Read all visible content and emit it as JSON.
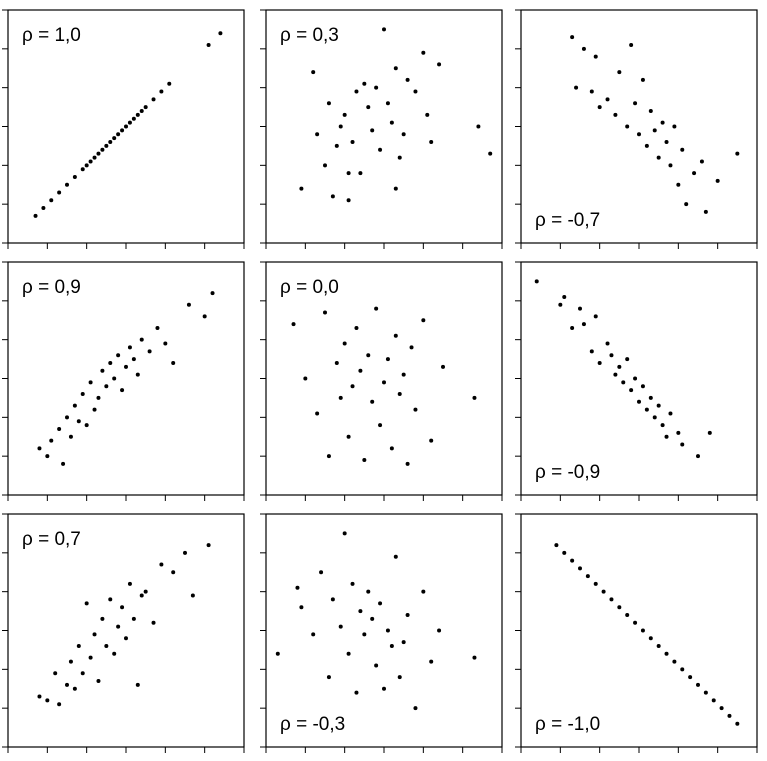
{
  "chart_data": [
    {
      "type": "scatter",
      "annotation": "ρ = 1,0",
      "annotation_corner": "upper left",
      "color": "#000000",
      "x": [
        0.7,
        0.9,
        1.1,
        1.3,
        1.5,
        1.7,
        1.9,
        2.0,
        2.1,
        2.2,
        2.3,
        2.4,
        2.5,
        2.6,
        2.7,
        2.8,
        2.9,
        3.0,
        3.1,
        3.2,
        3.3,
        3.4,
        3.5,
        3.7,
        3.9,
        4.1,
        5.1,
        5.4
      ],
      "y": [
        0.7,
        0.9,
        1.1,
        1.3,
        1.5,
        1.7,
        1.9,
        2.0,
        2.1,
        2.2,
        2.3,
        2.4,
        2.5,
        2.6,
        2.7,
        2.8,
        2.9,
        3.0,
        3.1,
        3.2,
        3.3,
        3.4,
        3.5,
        3.7,
        3.9,
        4.1,
        5.1,
        5.4
      ],
      "xlim": [
        0,
        6
      ],
      "ylim": [
        0,
        6
      ],
      "xticks": [
        0,
        1,
        2,
        3,
        4,
        5,
        6
      ],
      "yticks": [
        0,
        1,
        2,
        3,
        4,
        5,
        6
      ]
    },
    {
      "type": "scatter",
      "annotation": "ρ = 0,3",
      "annotation_corner": "upper left",
      "color": "#000000",
      "x": [
        0.9,
        1.2,
        1.3,
        1.5,
        1.6,
        1.7,
        1.8,
        1.9,
        2.0,
        2.1,
        2.2,
        2.3,
        2.4,
        2.5,
        2.6,
        2.7,
        2.8,
        2.9,
        3.0,
        3.1,
        3.2,
        3.3,
        3.4,
        3.5,
        3.6,
        3.8,
        4.0,
        4.2,
        4.4,
        5.4,
        5.7,
        3.3,
        2.1,
        4.1
      ],
      "y": [
        1.4,
        4.4,
        2.8,
        2.0,
        3.6,
        1.2,
        2.5,
        3.0,
        3.3,
        1.1,
        2.6,
        3.9,
        1.8,
        4.1,
        3.5,
        2.9,
        4.0,
        2.4,
        5.5,
        3.6,
        3.1,
        4.5,
        2.2,
        2.8,
        4.2,
        3.9,
        4.9,
        2.6,
        4.6,
        3.0,
        2.3,
        1.4,
        1.8,
        3.3
      ],
      "xlim": [
        0,
        6
      ],
      "ylim": [
        0,
        6
      ],
      "xticks": [
        0,
        1,
        2,
        3,
        4,
        5,
        6
      ],
      "yticks": [
        0,
        1,
        2,
        3,
        4,
        5,
        6
      ]
    },
    {
      "type": "scatter",
      "annotation": "ρ = -0,7",
      "annotation_corner": "lower left",
      "color": "#000000",
      "x": [
        1.3,
        1.4,
        1.6,
        1.8,
        1.9,
        2.0,
        2.2,
        2.4,
        2.5,
        2.7,
        2.8,
        2.9,
        3.0,
        3.1,
        3.2,
        3.3,
        3.4,
        3.5,
        3.6,
        3.7,
        3.8,
        3.9,
        4.0,
        4.1,
        4.2,
        4.4,
        4.6,
        4.7,
        5.0,
        5.5
      ],
      "y": [
        5.3,
        4.0,
        5.0,
        3.9,
        4.8,
        3.5,
        3.7,
        3.3,
        4.4,
        3.0,
        5.1,
        3.6,
        2.8,
        4.2,
        2.5,
        3.4,
        2.9,
        2.2,
        3.1,
        2.6,
        2.0,
        3.0,
        1.5,
        2.4,
        1.0,
        1.8,
        2.1,
        0.8,
        1.6,
        2.3
      ],
      "xlim": [
        0,
        6
      ],
      "ylim": [
        0,
        6
      ],
      "xticks": [
        0,
        1,
        2,
        3,
        4,
        5,
        6
      ],
      "yticks": [
        0,
        1,
        2,
        3,
        4,
        5,
        6
      ]
    },
    {
      "type": "scatter",
      "annotation": "ρ = 0,9",
      "annotation_corner": "upper left",
      "color": "#000000",
      "x": [
        0.8,
        1.0,
        1.1,
        1.3,
        1.4,
        1.5,
        1.6,
        1.7,
        1.8,
        1.9,
        2.0,
        2.1,
        2.2,
        2.3,
        2.4,
        2.5,
        2.6,
        2.7,
        2.8,
        2.9,
        3.0,
        3.1,
        3.2,
        3.3,
        3.4,
        3.6,
        3.8,
        4.0,
        4.2,
        4.6,
        5.0,
        5.2
      ],
      "y": [
        1.2,
        1.0,
        1.4,
        1.7,
        0.8,
        2.0,
        1.5,
        2.3,
        1.9,
        2.6,
        1.8,
        2.9,
        2.2,
        2.5,
        3.2,
        2.8,
        3.4,
        3.0,
        3.6,
        2.7,
        3.3,
        3.8,
        3.5,
        3.1,
        4.0,
        3.7,
        4.3,
        3.9,
        3.4,
        4.9,
        4.6,
        5.2
      ],
      "xlim": [
        0,
        6
      ],
      "ylim": [
        0,
        6
      ],
      "xticks": [
        0,
        1,
        2,
        3,
        4,
        5,
        6
      ],
      "yticks": [
        0,
        1,
        2,
        3,
        4,
        5,
        6
      ]
    },
    {
      "type": "scatter",
      "annotation": "ρ = 0,0",
      "annotation_corner": "upper left",
      "color": "#000000",
      "x": [
        0.7,
        1.0,
        1.3,
        1.5,
        1.6,
        1.8,
        1.9,
        2.0,
        2.1,
        2.2,
        2.3,
        2.4,
        2.5,
        2.6,
        2.7,
        2.8,
        2.9,
        3.0,
        3.1,
        3.2,
        3.3,
        3.4,
        3.5,
        3.6,
        3.7,
        3.8,
        4.0,
        4.2,
        4.5,
        5.3
      ],
      "y": [
        4.4,
        3.0,
        2.1,
        4.7,
        1.0,
        3.4,
        2.5,
        3.9,
        1.5,
        2.8,
        4.3,
        3.2,
        0.9,
        3.6,
        2.4,
        4.8,
        1.8,
        2.9,
        3.5,
        1.2,
        4.1,
        2.6,
        3.1,
        0.8,
        3.8,
        2.2,
        4.5,
        1.4,
        3.3,
        2.5
      ],
      "xlim": [
        0,
        6
      ],
      "ylim": [
        0,
        6
      ],
      "xticks": [
        0,
        1,
        2,
        3,
        4,
        5,
        6
      ],
      "yticks": [
        0,
        1,
        2,
        3,
        4,
        5,
        6
      ]
    },
    {
      "type": "scatter",
      "annotation": "ρ = -0,9",
      "annotation_corner": "lower left",
      "color": "#000000",
      "x": [
        0.4,
        1.0,
        1.1,
        1.3,
        1.5,
        1.6,
        1.8,
        1.9,
        2.0,
        2.2,
        2.3,
        2.4,
        2.5,
        2.6,
        2.7,
        2.8,
        2.9,
        3.0,
        3.1,
        3.2,
        3.3,
        3.4,
        3.5,
        3.6,
        3.7,
        3.8,
        4.0,
        4.1,
        4.5,
        4.8
      ],
      "y": [
        5.5,
        4.9,
        5.1,
        4.3,
        4.8,
        4.4,
        3.7,
        4.6,
        3.4,
        3.9,
        3.6,
        3.1,
        3.3,
        2.9,
        3.5,
        2.7,
        3.0,
        2.4,
        2.8,
        2.2,
        2.5,
        2.0,
        2.3,
        1.8,
        1.5,
        2.1,
        1.6,
        1.3,
        1.0,
        1.6
      ],
      "xlim": [
        0,
        6
      ],
      "ylim": [
        0,
        6
      ],
      "xticks": [
        0,
        1,
        2,
        3,
        4,
        5,
        6
      ],
      "yticks": [
        0,
        1,
        2,
        3,
        4,
        5,
        6
      ]
    },
    {
      "type": "scatter",
      "annotation": "ρ = 0,7",
      "annotation_corner": "upper left",
      "color": "#000000",
      "x": [
        0.8,
        1.0,
        1.2,
        1.3,
        1.5,
        1.6,
        1.7,
        1.8,
        1.9,
        2.0,
        2.1,
        2.2,
        2.3,
        2.4,
        2.5,
        2.6,
        2.7,
        2.8,
        2.9,
        3.0,
        3.1,
        3.2,
        3.3,
        3.4,
        3.5,
        3.7,
        3.9,
        4.2,
        4.5,
        4.7,
        5.1
      ],
      "y": [
        1.3,
        1.2,
        1.9,
        1.1,
        1.6,
        2.2,
        1.5,
        2.6,
        1.9,
        3.7,
        2.3,
        2.9,
        1.7,
        3.3,
        2.6,
        3.8,
        2.4,
        3.1,
        3.6,
        2.8,
        4.2,
        3.3,
        1.6,
        3.9,
        4.0,
        3.2,
        4.7,
        4.5,
        5.0,
        3.9,
        5.2
      ],
      "xlim": [
        0,
        6
      ],
      "ylim": [
        0,
        6
      ],
      "xticks": [
        0,
        1,
        2,
        3,
        4,
        5,
        6
      ],
      "yticks": [
        0,
        1,
        2,
        3,
        4,
        5,
        6
      ]
    },
    {
      "type": "scatter",
      "annotation": "ρ = -0,3",
      "annotation_corner": "lower left",
      "color": "#000000",
      "x": [
        0.3,
        0.8,
        0.9,
        1.2,
        1.4,
        1.6,
        1.7,
        1.9,
        2.0,
        2.1,
        2.2,
        2.3,
        2.4,
        2.5,
        2.6,
        2.7,
        2.8,
        2.9,
        3.0,
        3.1,
        3.2,
        3.3,
        3.4,
        3.5,
        3.6,
        3.8,
        4.0,
        4.2,
        4.4,
        5.3
      ],
      "y": [
        2.4,
        4.1,
        3.6,
        2.9,
        4.5,
        1.8,
        3.8,
        3.1,
        5.5,
        2.4,
        4.2,
        1.4,
        3.5,
        2.9,
        4.0,
        3.3,
        2.1,
        3.7,
        1.5,
        3.0,
        2.6,
        4.9,
        1.8,
        2.7,
        3.4,
        1.0,
        4.0,
        2.2,
        3.0,
        2.3
      ],
      "xlim": [
        0,
        6
      ],
      "ylim": [
        0,
        6
      ],
      "xticks": [
        0,
        1,
        2,
        3,
        4,
        5,
        6
      ],
      "yticks": [
        0,
        1,
        2,
        3,
        4,
        5,
        6
      ]
    },
    {
      "type": "scatter",
      "annotation": "ρ = -1,0",
      "annotation_corner": "lower left",
      "color": "#000000",
      "x": [
        0.9,
        1.1,
        1.3,
        1.5,
        1.7,
        1.9,
        2.1,
        2.3,
        2.5,
        2.7,
        2.9,
        3.1,
        3.3,
        3.5,
        3.7,
        3.9,
        4.1,
        4.3,
        4.5,
        4.7,
        4.9,
        5.1,
        5.3,
        5.5
      ],
      "y": [
        5.2,
        5.0,
        4.8,
        4.6,
        4.4,
        4.2,
        4.0,
        3.8,
        3.6,
        3.4,
        3.2,
        3.0,
        2.8,
        2.6,
        2.4,
        2.2,
        2.0,
        1.8,
        1.6,
        1.4,
        1.2,
        1.0,
        0.8,
        0.6
      ],
      "xlim": [
        0,
        6
      ],
      "ylim": [
        0,
        6
      ],
      "xticks": [
        0,
        1,
        2,
        3,
        4,
        5,
        6
      ],
      "yticks": [
        0,
        1,
        2,
        3,
        4,
        5,
        6
      ]
    }
  ]
}
